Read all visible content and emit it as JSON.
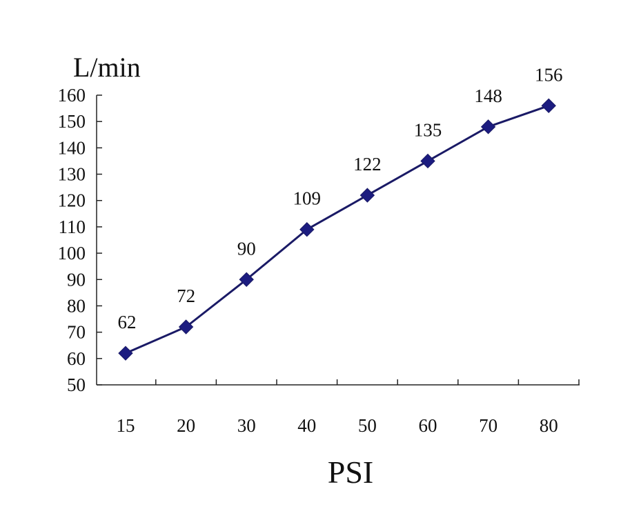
{
  "chart_data": {
    "type": "line",
    "title": "",
    "xlabel": "PSI",
    "ylabel": "L/min",
    "categories": [
      "15",
      "20",
      "30",
      "40",
      "50",
      "60",
      "70",
      "80"
    ],
    "series": [
      {
        "values": [
          62,
          72,
          90,
          109,
          122,
          135,
          148,
          156
        ]
      }
    ],
    "ylim": [
      50,
      160
    ],
    "yticks": [
      "50",
      "60",
      "70",
      "80",
      "90",
      "100",
      "110",
      "120",
      "130",
      "140",
      "150",
      "160"
    ],
    "grid": false,
    "marker": "diamond",
    "data_labels": true,
    "colors": {
      "line": "#1a1a66",
      "marker": "#1c1c80",
      "axis": "#222222"
    }
  }
}
